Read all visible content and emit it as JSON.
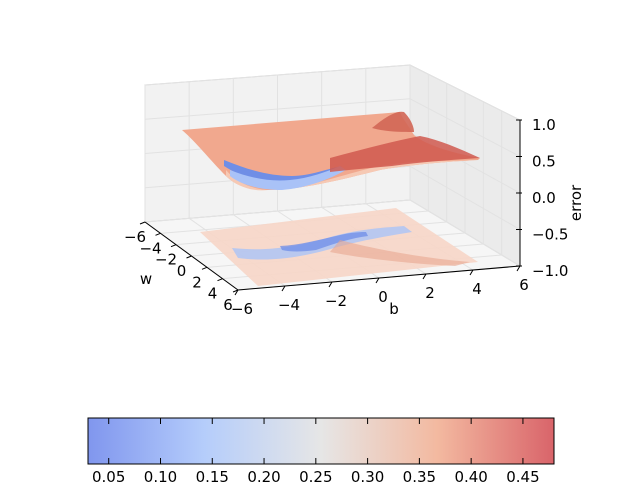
{
  "chart_data": {
    "type": "surface",
    "surface_function": "error = 1/(1+exp(-(w*x + b))) over x, per (w,b); offset surface with contour projection below",
    "axes": {
      "w": {
        "label": "w",
        "range": [
          -6,
          6
        ],
        "ticks": [
          "−6",
          "−4",
          "−2",
          "0",
          "2",
          "4",
          "6"
        ]
      },
      "b": {
        "label": "b",
        "range": [
          -6,
          6
        ],
        "ticks": [
          "−6",
          "−4",
          "−2",
          "0",
          "2",
          "4",
          "6"
        ]
      },
      "error": {
        "label": "error",
        "range": [
          -1.0,
          1.0
        ],
        "ticks": [
          "−1.0",
          "−0.5",
          "0.0",
          "0.5",
          "1.0"
        ]
      }
    },
    "colorbar": {
      "range": [
        0.03,
        0.48
      ],
      "ticks": [
        "0.05",
        "0.10",
        "0.15",
        "0.20",
        "0.25",
        "0.30",
        "0.35",
        "0.40",
        "0.45"
      ],
      "tick_values": [
        0.05,
        0.1,
        0.15,
        0.2,
        0.25,
        0.3,
        0.35,
        0.4,
        0.45
      ],
      "colormap": "coolwarm",
      "placement": "bottom"
    },
    "colors": {
      "low": "#3b4cc0",
      "mid": "#dddddd",
      "high": "#b40426"
    }
  }
}
